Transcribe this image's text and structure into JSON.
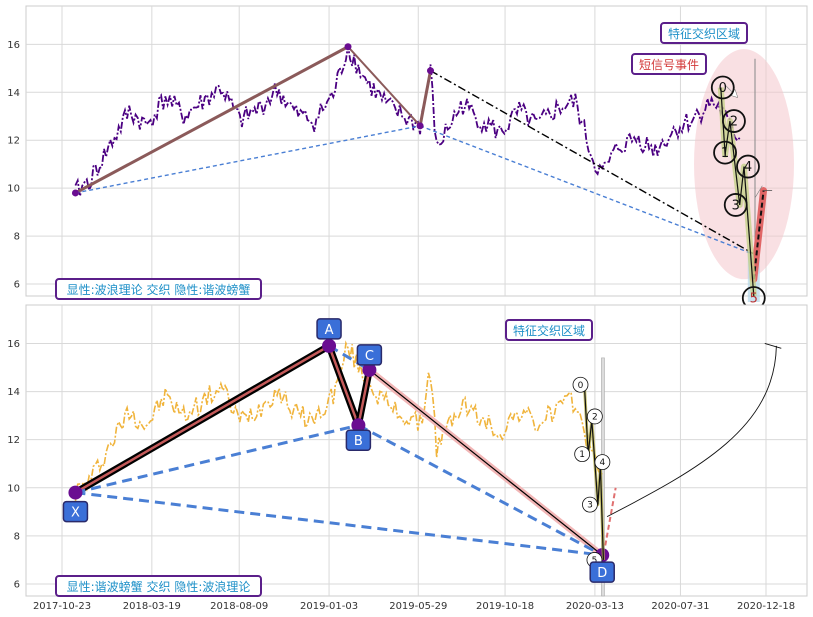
{
  "chart_data": [
    {
      "type": "line",
      "panel": "top",
      "y_ticks": [
        6,
        8,
        10,
        12,
        14,
        16
      ],
      "ylim": [
        5.5,
        17.6
      ],
      "grid": true,
      "colors": {
        "price": "#4b0082",
        "wave": "#8b5a5a",
        "blue_dash": "#4a7fd4",
        "black_dash": "#000000",
        "ellipse": "#f4c6cc",
        "text_blue": "#1e90c8",
        "box_border": "#5b1f8a",
        "event_text": "#d33b3b"
      },
      "series": [
        {
          "x": [
            "2017-11-14",
            "2017-12-10",
            "2018-01-10",
            "2018-02-10",
            "2018-03-10",
            "2018-04-10",
            "2018-05-10",
            "2018-06-10",
            "2018-07-10",
            "2018-08-10",
            "2018-09-10",
            "2018-10-10",
            "2018-11-10",
            "2018-12-10",
            "2019-01-10",
            "2019-02-03",
            "2019-02-20",
            "2019-03-10",
            "2019-04-10",
            "2019-05-10",
            "2019-06-01",
            "2019-06-18",
            "2019-06-28",
            "2019-07-20",
            "2019-08-10",
            "2019-09-10",
            "2019-10-10",
            "2019-11-10",
            "2019-12-10",
            "2020-01-10",
            "2020-02-10",
            "2020-03-10",
            "2020-03-25",
            "2020-04-20",
            "2020-05-20",
            "2020-06-20",
            "2020-07-20",
            "2020-08-20",
            "2020-09-20",
            "2020-10-05",
            "2020-10-20",
            "2020-11-05"
          ],
          "values": [
            9.8,
            10.4,
            11.8,
            13.2,
            12.6,
            13.8,
            13.0,
            13.6,
            14.2,
            12.8,
            13.3,
            14.1,
            13.1,
            12.8,
            13.9,
            15.9,
            15.0,
            14.3,
            13.4,
            12.9,
            12.6,
            14.9,
            11.6,
            12.7,
            13.5,
            12.8,
            12.3,
            13.2,
            12.6,
            13.3,
            13.6,
            11.2,
            10.6,
            11.7,
            12.1,
            11.6,
            12.4,
            12.9,
            13.6,
            13.3,
            12.5,
            12.1
          ]
        }
      ],
      "harmonic": {
        "X": {
          "x": "2017-11-14",
          "y": 9.8
        },
        "A": {
          "x": "2019-02-03",
          "y": 15.9
        },
        "B": {
          "x": "2019-06-01",
          "y": 12.6
        },
        "C": {
          "x": "2019-06-18",
          "y": 14.9
        },
        "D": {
          "x": "2020-12-02",
          "y": 7.2
        }
      },
      "wave_points": [
        {
          "label": "0",
          "x": "2020-10-05",
          "y": 14.2
        },
        {
          "label": "1",
          "x": "2020-10-12",
          "y": 11.4
        },
        {
          "label": "2",
          "x": "2020-10-20",
          "y": 12.8
        },
        {
          "label": "3",
          "x": "2020-11-05",
          "y": 9.3
        },
        {
          "label": "4",
          "x": "2020-11-12",
          "y": 10.9
        },
        {
          "label": "5",
          "x": "2020-11-28",
          "y": 5.5
        }
      ],
      "annotations": {
        "feature_region": "特征交织区域",
        "short_signal": "短信号事件",
        "legend": "显性:波浪理论 交织 隐性:谐波螃蟹"
      }
    },
    {
      "type": "line",
      "panel": "bottom",
      "y_ticks": [
        6,
        8,
        10,
        12,
        14,
        16
      ],
      "ylim": [
        5.5,
        17.6
      ],
      "x_ticks": [
        "2017-10-23",
        "2018-03-19",
        "2018-08-09",
        "2019-01-03",
        "2019-05-29",
        "2019-10-18",
        "2020-03-13",
        "2020-07-31",
        "2020-12-18"
      ],
      "grid": true,
      "colors": {
        "price": "#f0b43c",
        "xabcd": "#000000",
        "xabcd_inner": "#c45a5a",
        "blue_dash": "#4a7fd4",
        "marker": "#6a0d91",
        "label_bg": "#3a6fd8",
        "text_blue": "#1e90c8"
      },
      "series": [
        {
          "x": [
            "2017-11-14",
            "2017-12-10",
            "2018-01-10",
            "2018-02-10",
            "2018-03-10",
            "2018-04-10",
            "2018-05-10",
            "2018-06-10",
            "2018-07-10",
            "2018-08-10",
            "2018-09-10",
            "2018-10-10",
            "2018-11-10",
            "2018-12-10",
            "2019-01-10",
            "2019-02-03",
            "2019-02-20",
            "2019-03-10",
            "2019-04-10",
            "2019-05-10",
            "2019-06-01",
            "2019-06-18",
            "2019-06-28",
            "2019-07-20",
            "2019-08-10",
            "2019-09-10",
            "2019-10-10",
            "2019-11-10",
            "2019-12-10",
            "2020-01-10",
            "2020-02-10",
            "2020-03-10",
            "2020-03-25"
          ],
          "values": [
            9.8,
            10.4,
            11.8,
            13.2,
            12.6,
            13.8,
            13.0,
            13.6,
            14.2,
            12.8,
            13.3,
            14.1,
            13.1,
            12.8,
            13.9,
            15.9,
            15.0,
            14.3,
            13.4,
            12.9,
            12.6,
            14.9,
            11.6,
            12.7,
            13.5,
            12.8,
            12.3,
            13.2,
            12.6,
            13.3,
            13.6,
            11.2,
            10.6
          ]
        }
      ],
      "harmonic": {
        "X": {
          "x": "2017-11-14",
          "y": 9.8
        },
        "A": {
          "x": "2019-01-03",
          "y": 15.9
        },
        "B": {
          "x": "2019-02-20",
          "y": 12.6
        },
        "C": {
          "x": "2019-03-10",
          "y": 14.9
        },
        "D": {
          "x": "2020-03-25",
          "y": 7.2
        }
      },
      "wave_points": [
        {
          "label": "0",
          "x": "2020-02-25",
          "y": 14.2
        },
        {
          "label": "1",
          "x": "2020-03-02",
          "y": 11.4
        },
        {
          "label": "2",
          "x": "2020-03-08",
          "y": 12.8
        },
        {
          "label": "3",
          "x": "2020-03-18",
          "y": 9.3
        },
        {
          "label": "4",
          "x": "2020-03-22",
          "y": 10.9
        },
        {
          "label": "5",
          "x": "2020-03-27",
          "y": 7.0
        }
      ],
      "annotations": {
        "feature_region": "特征交织区域",
        "legend": "显性:谐波螃蟹 交织 隐性:波浪理论"
      }
    }
  ]
}
